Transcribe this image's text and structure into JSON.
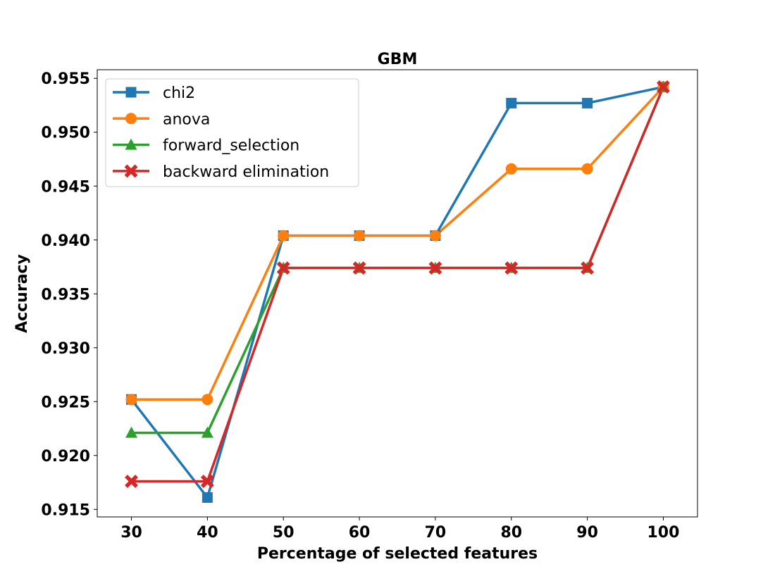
{
  "chart_data": {
    "type": "line",
    "title": "GBM",
    "xlabel": "Percentage of selected features",
    "ylabel": "Accuracy",
    "x": [
      30,
      40,
      50,
      60,
      70,
      80,
      90,
      100
    ],
    "x_ticks": [
      "30",
      "40",
      "50",
      "60",
      "70",
      "80",
      "90",
      "100"
    ],
    "ylim": [
      0.9143,
      0.9558
    ],
    "y_ticks": [
      "0.915",
      "0.920",
      "0.925",
      "0.930",
      "0.935",
      "0.940",
      "0.945",
      "0.950",
      "0.955"
    ],
    "y_tick_values": [
      0.915,
      0.92,
      0.925,
      0.93,
      0.935,
      0.94,
      0.945,
      0.95,
      0.955
    ],
    "grid": false,
    "legend_position": "upper-left",
    "series": [
      {
        "name": "chi2",
        "color": "#1f77b4",
        "marker": "square",
        "values": [
          0.9252,
          0.9161,
          0.9404,
          0.9404,
          0.9404,
          0.9527,
          0.9527,
          0.9542
        ]
      },
      {
        "name": "anova",
        "color": "#ff7f0e",
        "marker": "circle",
        "values": [
          0.9252,
          0.9252,
          0.9404,
          0.9404,
          0.9404,
          0.9466,
          0.9466,
          0.9542
        ]
      },
      {
        "name": "forward_selection",
        "color": "#2ca02c",
        "marker": "triangle",
        "values": [
          0.9221,
          0.9221,
          0.9374,
          0.9374,
          0.9374,
          0.9374,
          0.9374,
          0.9542
        ]
      },
      {
        "name": "backward elimination",
        "color": "#d62728",
        "marker": "x",
        "values": [
          0.9176,
          0.9176,
          0.9374,
          0.9374,
          0.9374,
          0.9374,
          0.9374,
          0.9542
        ]
      }
    ]
  }
}
